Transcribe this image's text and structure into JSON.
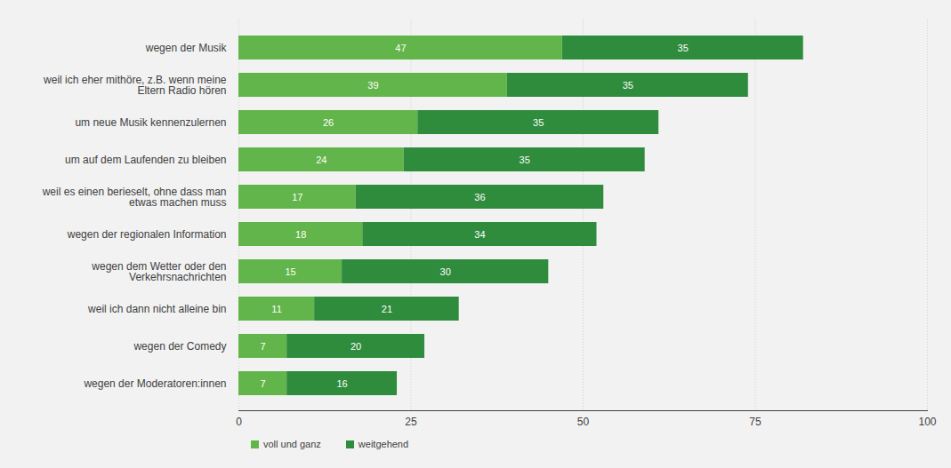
{
  "chart_data": {
    "type": "bar",
    "orientation": "horizontal",
    "stacked": true,
    "data_labels": true,
    "grid": true,
    "legend": "bottom",
    "categories": [
      "wegen der Musik",
      "weil ich eher mithöre, z.B. wenn meine Eltern Radio hören",
      "um neue Musik kennenzulernen",
      "um auf dem Laufenden zu bleiben",
      "weil es einen berieselt, ohne dass man etwas machen muss",
      "wegen der regionalen Information",
      "wegen dem Wetter oder den Verkehrsnachrichten",
      "weil ich dann nicht alleine bin",
      "wegen der Comedy",
      "wegen der Moderatoren:innen"
    ],
    "series": [
      {
        "name": "voll und ganz",
        "color": "#62b54a",
        "values": [
          47,
          39,
          26,
          24,
          17,
          18,
          15,
          11,
          7,
          7
        ]
      },
      {
        "name": "weitgehend",
        "color": "#2f8c3d",
        "values": [
          35,
          35,
          35,
          35,
          36,
          34,
          30,
          21,
          20,
          16
        ]
      }
    ],
    "xlim": [
      0,
      100
    ],
    "xticks": [
      0,
      25,
      50,
      75,
      100
    ]
  }
}
